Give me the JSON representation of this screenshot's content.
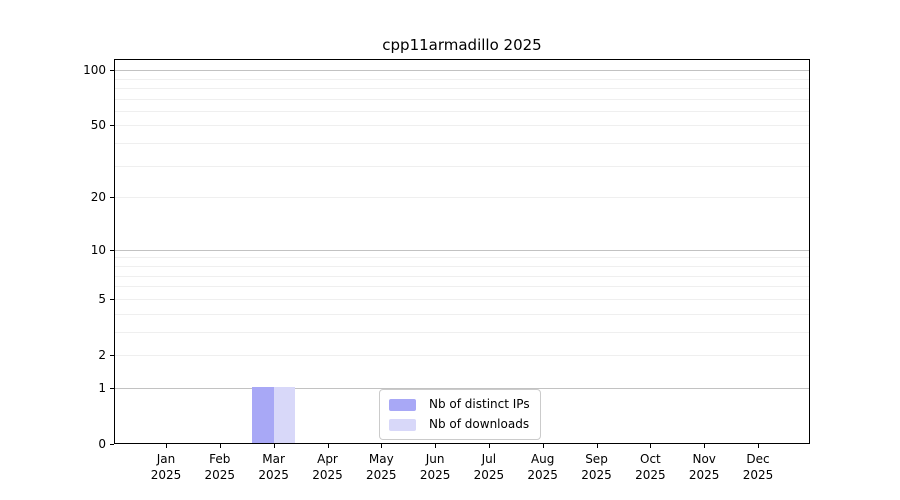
{
  "chart_data": {
    "type": "bar",
    "title": "cpp11armadillo 2025",
    "xlabel": "",
    "ylabel": "",
    "categories": [
      "Jan 2025",
      "Feb 2025",
      "Mar 2025",
      "Apr 2025",
      "May 2025",
      "Jun 2025",
      "Jul 2025",
      "Aug 2025",
      "Sep 2025",
      "Oct 2025",
      "Nov 2025",
      "Dec 2025"
    ],
    "series": [
      {
        "name": "Nb of distinct IPs",
        "color": "#a8a8f6",
        "values": [
          0,
          0,
          1,
          0,
          0,
          0,
          0,
          0,
          0,
          0,
          0,
          0
        ]
      },
      {
        "name": "Nb of downloads",
        "color": "#d8d8f9",
        "values": [
          0,
          0,
          1,
          0,
          0,
          0,
          0,
          0,
          0,
          0,
          0,
          0
        ]
      }
    ],
    "y_scale": "log1p",
    "ylim": [
      0,
      114.7
    ],
    "y_ticks": [
      0,
      1,
      2,
      5,
      10,
      20,
      50,
      100
    ],
    "major_grid_values": [
      1,
      10,
      100
    ],
    "minor_grid_values": [
      2,
      3,
      4,
      5,
      6,
      7,
      8,
      9,
      20,
      30,
      40,
      50,
      60,
      70,
      80,
      90
    ],
    "grid": "horizontal",
    "legend_position": "inside-bottom-center"
  },
  "colors": {
    "background": "#ffffff",
    "axis": "#000000",
    "major_grid": "#c2c2c2",
    "minor_grid": "#efefef",
    "legend_border": "#cbcbcb",
    "text": "#000000"
  }
}
